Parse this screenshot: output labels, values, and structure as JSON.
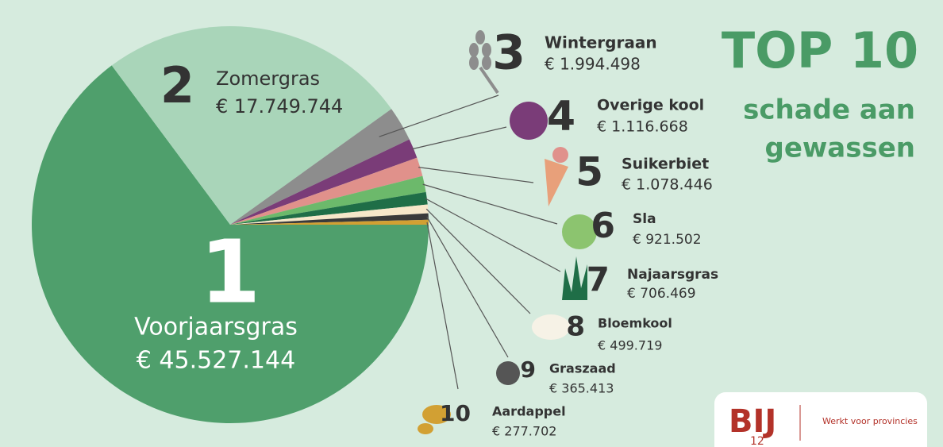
{
  "chart_data": {
    "type": "pie",
    "title": "TOP 10",
    "subtitle": [
      "schade aan",
      "gewassen"
    ],
    "ranks": [
      1,
      2,
      3,
      4,
      5,
      6,
      7,
      8,
      9,
      10
    ],
    "categories": [
      "Voorjaarsgras",
      "Zomergras",
      "Wintergraan",
      "Overige kool",
      "Suikerbiet",
      "Sla",
      "Najaarsgras",
      "Bloemkool",
      "Graszaad",
      "Aardappel"
    ],
    "values": [
      45527144,
      17749744,
      1994498,
      1116668,
      1078446,
      921502,
      706469,
      499719,
      365413,
      277702
    ],
    "value_labels": [
      "€ 45.527.144",
      "€ 17.749.744",
      "€ 1.994.498",
      "€ 1.116.668",
      "€ 1.078.446",
      "€ 921.502",
      "€ 706.469",
      "€ 499.719",
      "€ 365.413",
      "€ 277.702"
    ],
    "colors": [
      "#4f9f6c",
      "#a9d5b9",
      "#8d8d8d",
      "#7a3c78",
      "#e0918b",
      "#6cb96b",
      "#1f6e47",
      "#f6e7c9",
      "#3a3a3a",
      "#d2a033"
    ]
  },
  "logo": {
    "mark": "BIJ",
    "number": "12",
    "tagline": "Werkt voor provincies"
  }
}
